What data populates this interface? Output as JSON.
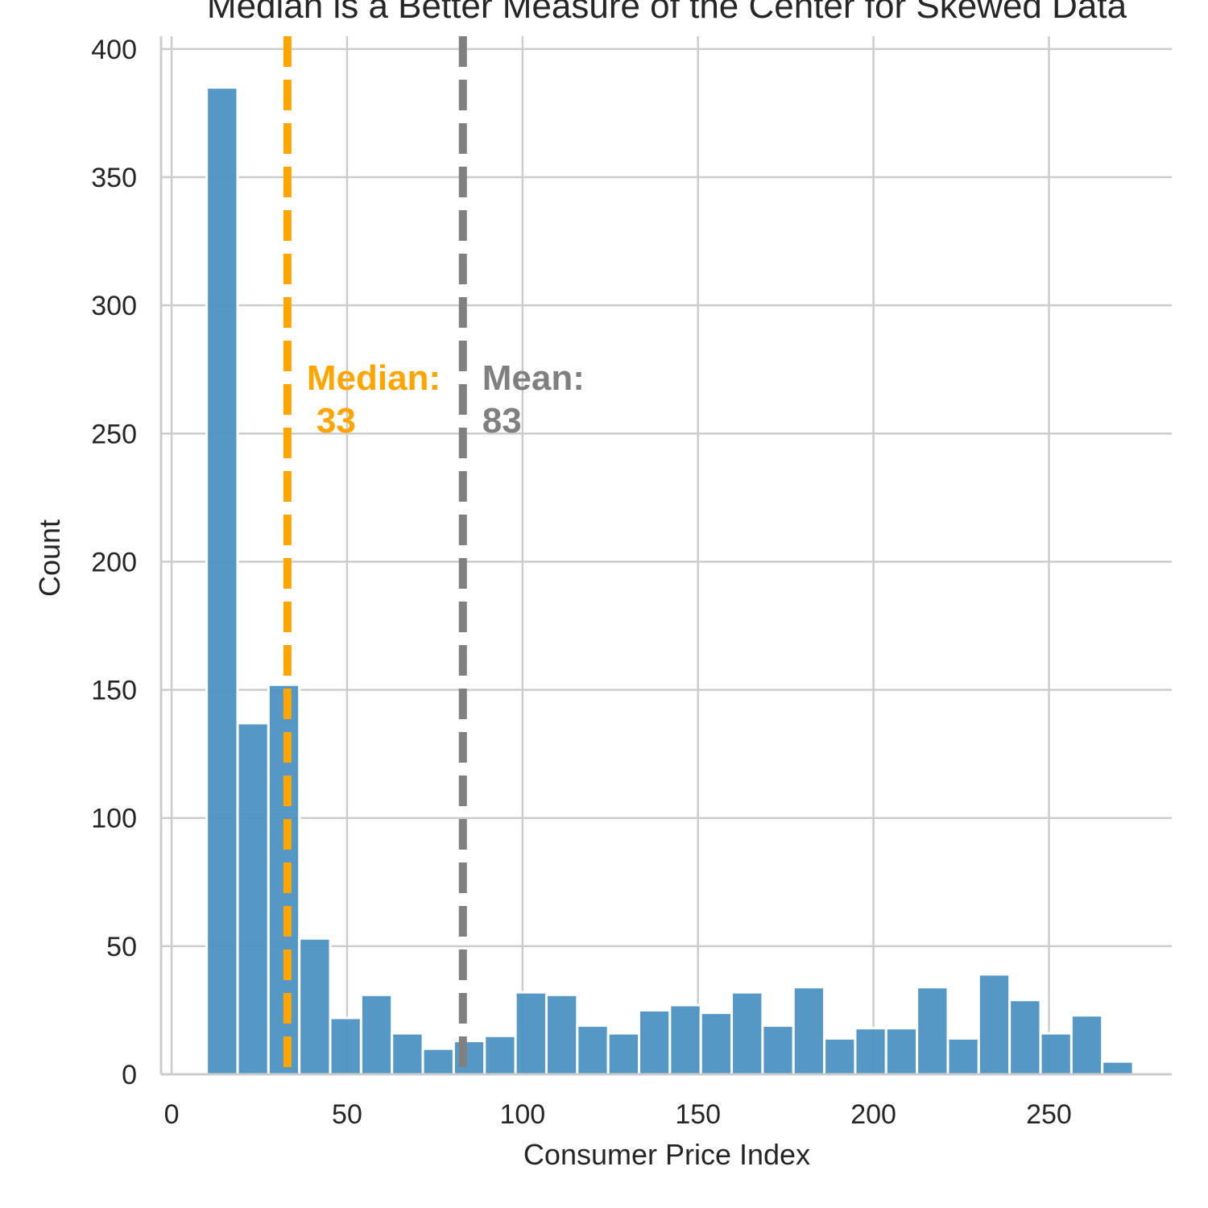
{
  "chart_data": {
    "type": "bar",
    "title": "Median is a Better Measure of the Center for Skewed Data",
    "xlabel": "Consumer Price Index",
    "ylabel": "Count",
    "xlim": [
      -3,
      285
    ],
    "ylim": [
      0,
      405
    ],
    "xticks": [
      0,
      50,
      100,
      150,
      200,
      250
    ],
    "yticks": [
      0,
      50,
      100,
      150,
      200,
      250,
      300,
      350,
      400
    ],
    "grid": true,
    "bar_color": "#4C92C3",
    "bins": [
      {
        "x0": 10,
        "x1": 18.8,
        "count": 385
      },
      {
        "x0": 18.8,
        "x1": 27.6,
        "count": 137
      },
      {
        "x0": 27.6,
        "x1": 36.4,
        "count": 152
      },
      {
        "x0": 36.4,
        "x1": 45.2,
        "count": 53
      },
      {
        "x0": 45.2,
        "x1": 54.0,
        "count": 22
      },
      {
        "x0": 54.0,
        "x1": 62.8,
        "count": 31
      },
      {
        "x0": 62.8,
        "x1": 71.6,
        "count": 16
      },
      {
        "x0": 71.6,
        "x1": 80.4,
        "count": 10
      },
      {
        "x0": 80.4,
        "x1": 89.2,
        "count": 13
      },
      {
        "x0": 89.2,
        "x1": 98.0,
        "count": 15
      },
      {
        "x0": 98.0,
        "x1": 106.8,
        "count": 32
      },
      {
        "x0": 106.8,
        "x1": 115.6,
        "count": 31
      },
      {
        "x0": 115.6,
        "x1": 124.4,
        "count": 19
      },
      {
        "x0": 124.4,
        "x1": 133.2,
        "count": 16
      },
      {
        "x0": 133.2,
        "x1": 142.0,
        "count": 25
      },
      {
        "x0": 142.0,
        "x1": 150.8,
        "count": 27
      },
      {
        "x0": 150.8,
        "x1": 159.6,
        "count": 24
      },
      {
        "x0": 159.6,
        "x1": 168.4,
        "count": 32
      },
      {
        "x0": 168.4,
        "x1": 177.2,
        "count": 19
      },
      {
        "x0": 177.2,
        "x1": 186.0,
        "count": 34
      },
      {
        "x0": 186.0,
        "x1": 194.8,
        "count": 14
      },
      {
        "x0": 194.8,
        "x1": 203.6,
        "count": 18
      },
      {
        "x0": 203.6,
        "x1": 212.4,
        "count": 18
      },
      {
        "x0": 212.4,
        "x1": 221.2,
        "count": 34
      },
      {
        "x0": 221.2,
        "x1": 230.0,
        "count": 14
      },
      {
        "x0": 230.0,
        "x1": 238.8,
        "count": 39
      },
      {
        "x0": 238.8,
        "x1": 247.6,
        "count": 29
      },
      {
        "x0": 247.6,
        "x1": 256.4,
        "count": 16
      },
      {
        "x0": 256.4,
        "x1": 265.2,
        "count": 23
      },
      {
        "x0": 265.2,
        "x1": 274.0,
        "count": 5
      }
    ],
    "reference_lines": [
      {
        "label_line1": "Median:",
        "label_line2": "33",
        "value": 33,
        "color": "#FFA500"
      },
      {
        "label_line1": "Mean:",
        "label_line2": "83",
        "value": 83,
        "color": "#808080"
      }
    ]
  }
}
